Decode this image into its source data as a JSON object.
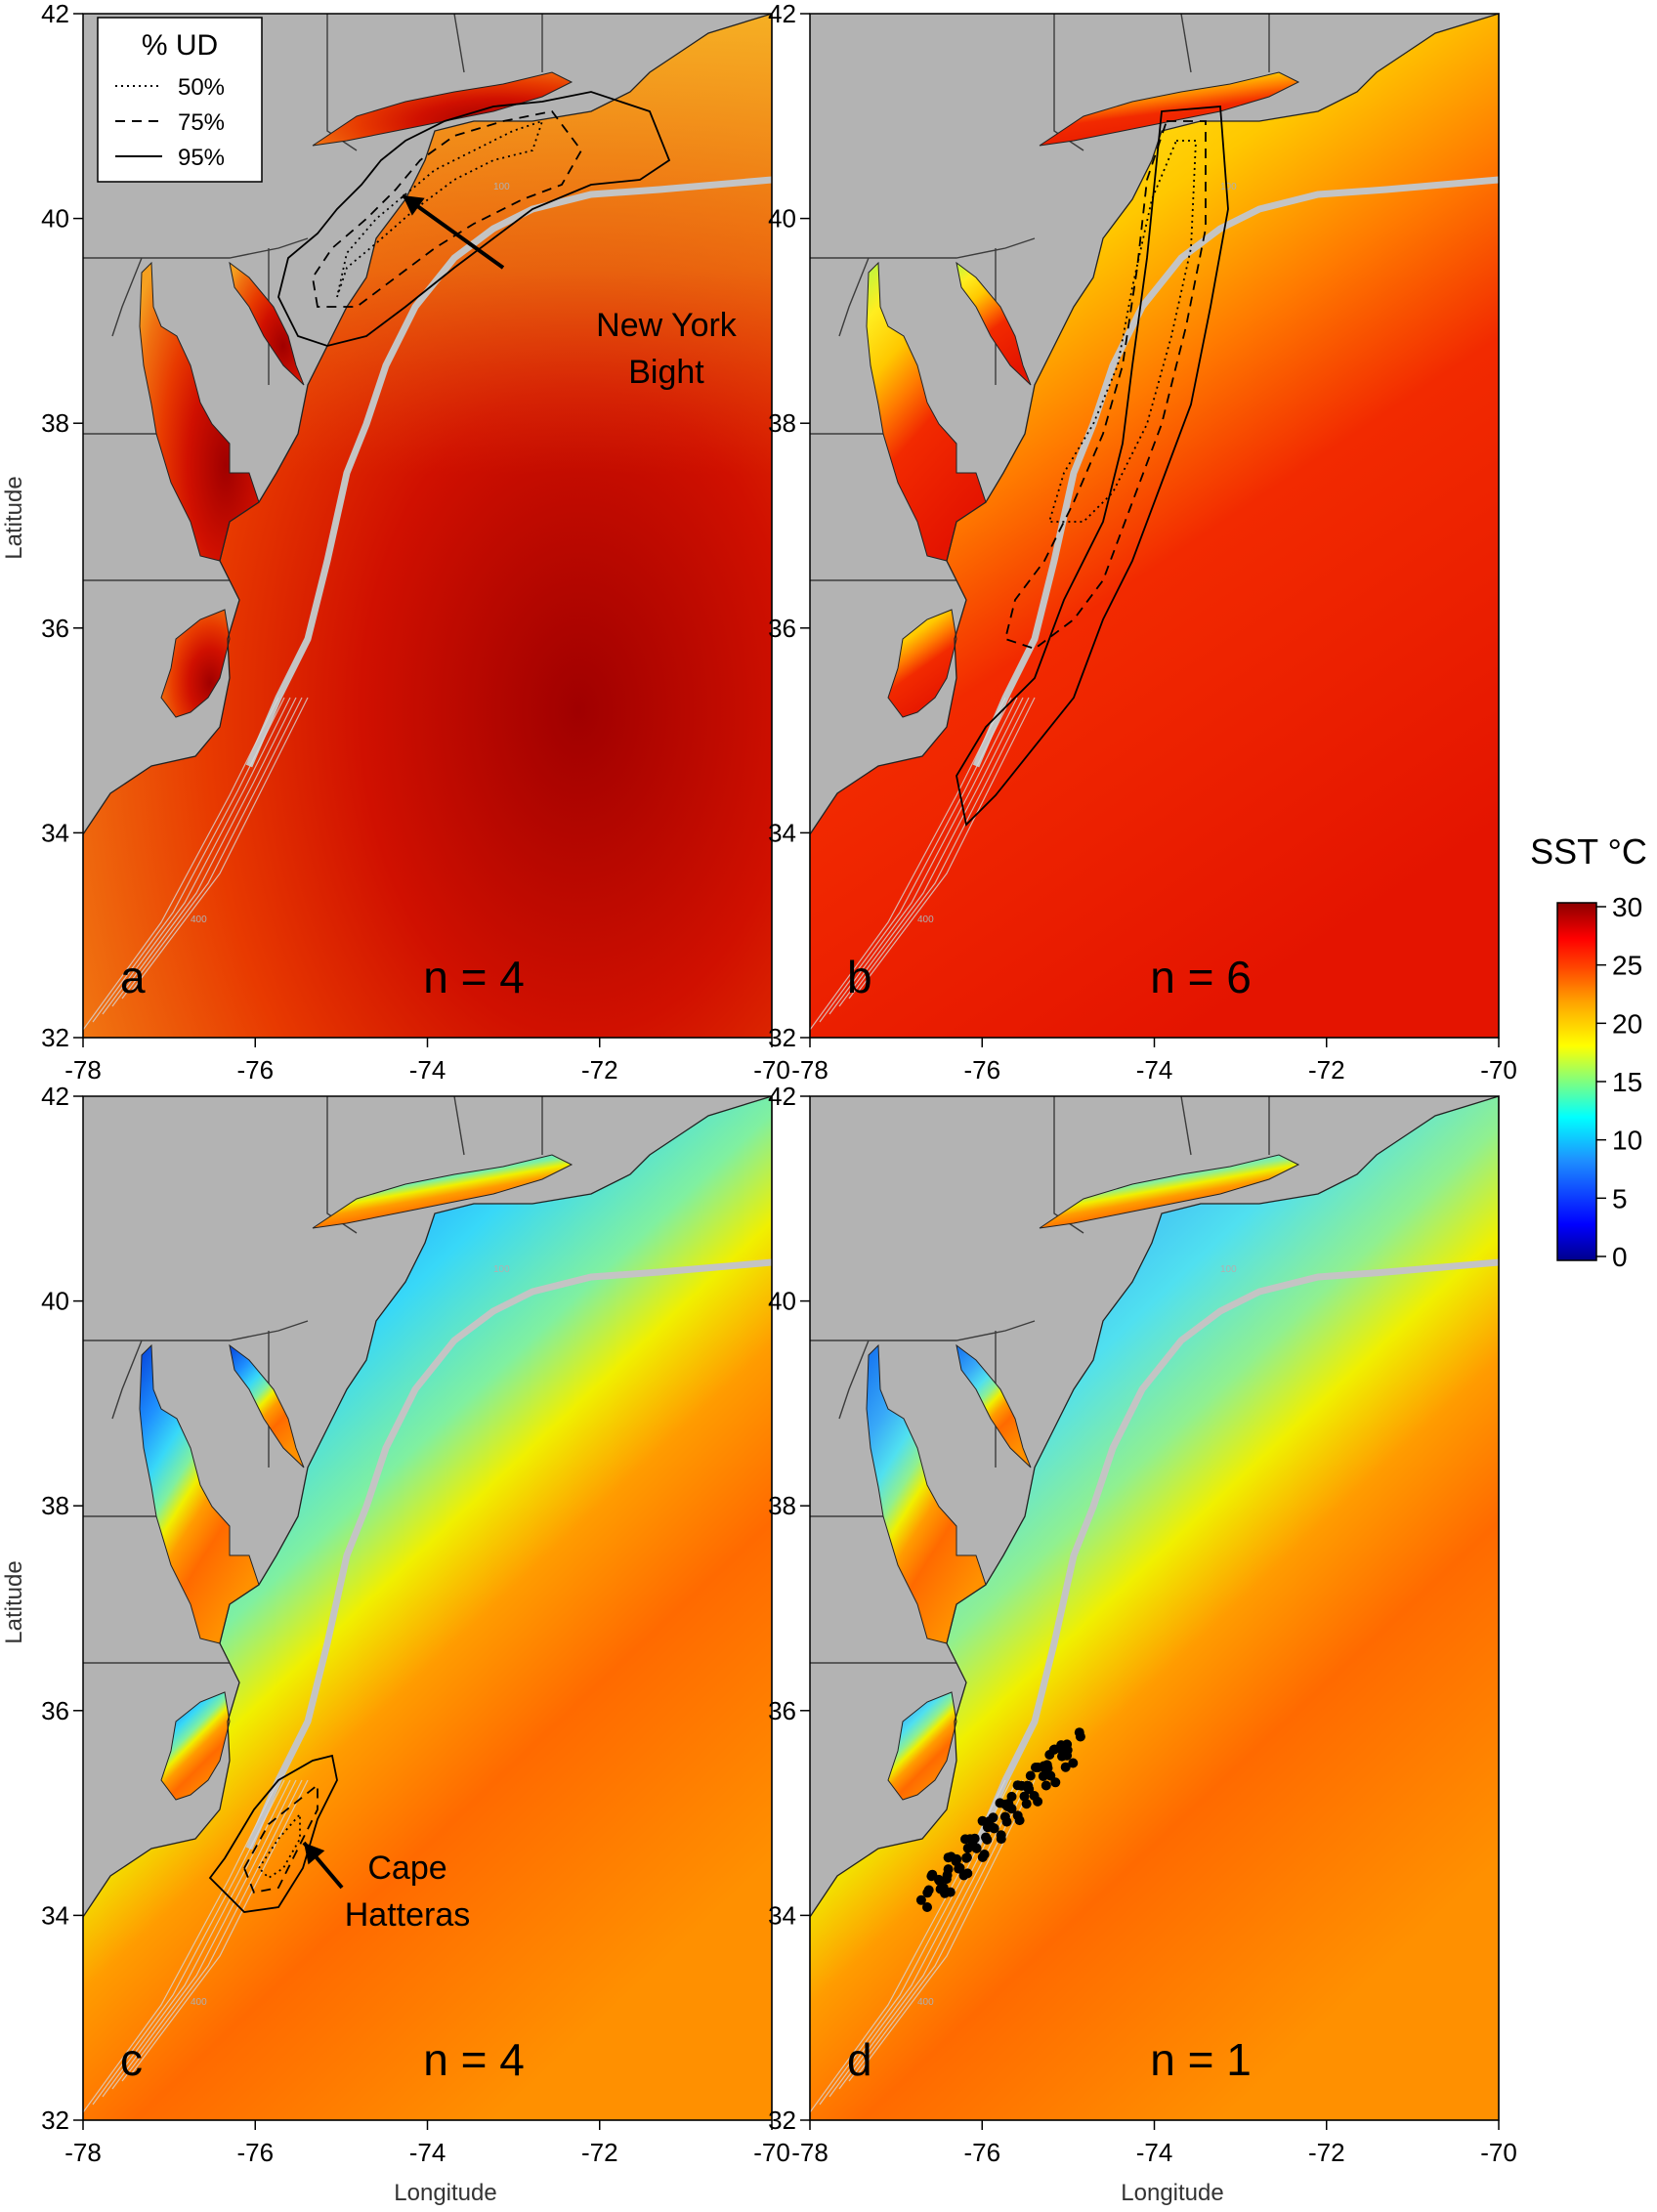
{
  "figure": {
    "xlabel": "Longitude",
    "ylabel": "Latitude",
    "x_ticks": [
      "-78",
      "-76",
      "-74",
      "-72",
      "-70"
    ],
    "y_ticks": [
      "42",
      "40",
      "38",
      "36",
      "34",
      "32"
    ],
    "x_range": [
      -78,
      -70
    ],
    "y_range": [
      32,
      42
    ],
    "bathymetry_labels": [
      "100",
      "400"
    ]
  },
  "legend": {
    "title": "% UD",
    "items": [
      {
        "label": "50%",
        "style": "dotted"
      },
      {
        "label": "75%",
        "style": "dashed"
      },
      {
        "label": "95%",
        "style": "solid"
      }
    ]
  },
  "colorbar": {
    "title": "SST °C",
    "ticks": [
      "30",
      "25",
      "20",
      "15",
      "10",
      "5",
      "0"
    ],
    "range": [
      0,
      30
    ],
    "colors": [
      "#00008b",
      "#0000ff",
      "#1e90ff",
      "#00ffff",
      "#7fff7f",
      "#ffff00",
      "#ffa500",
      "#ff4500",
      "#ff0000",
      "#8b0000"
    ]
  },
  "panels": [
    {
      "letter": "a",
      "n_label": "n = 4",
      "annotation": {
        "lines": [
          "New York",
          "Bight"
        ]
      }
    },
    {
      "letter": "b",
      "n_label": "n = 6"
    },
    {
      "letter": "c",
      "n_label": "n = 4",
      "annotation": {
        "lines": [
          "Cape",
          "Hatteras"
        ]
      }
    },
    {
      "letter": "d",
      "n_label": "n = 1"
    }
  ],
  "colors": {
    "land": "#b3b3b3",
    "border": "#3c3c3c",
    "shelf": "#c8c8c8",
    "contour": "#000000"
  }
}
